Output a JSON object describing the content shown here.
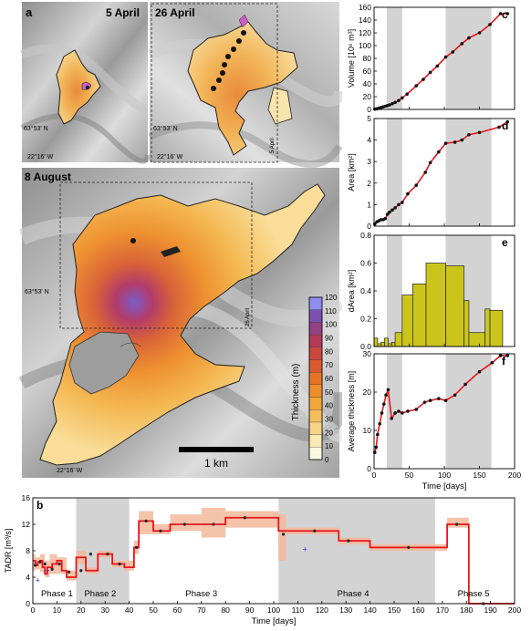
{
  "panel_labels": {
    "a": "a",
    "b": "b",
    "c": "c",
    "d": "d",
    "e": "e",
    "f": "f"
  },
  "maps": {
    "date1": "5 April",
    "date2": "26 April",
    "date3": "8 August",
    "lat": "63°53' N",
    "lon": "22°16' W",
    "inset_label_1": "5 April",
    "inset_label_2": "26 April",
    "scalebar": "1 km",
    "colorbar_title": "Thickness (m)",
    "colorbar_ticks": [
      "0",
      "10",
      "20",
      "30",
      "40",
      "50",
      "60",
      "70",
      "80",
      "90",
      "100",
      "110",
      "120"
    ],
    "colorbar_colors": [
      "#fdf8e4",
      "#fbe9b3",
      "#f8d486",
      "#f5bd5c",
      "#f2a63c",
      "#ee8e2c",
      "#e57426",
      "#d85a30",
      "#c8483f",
      "#b23c58",
      "#954183",
      "#7a4fb0",
      "#8e8ef0"
    ]
  },
  "chart_data": [
    {
      "id": "c",
      "type": "line",
      "ylabel": "Volume [10⁶ m³]",
      "xlim": [
        0,
        200
      ],
      "ylim": [
        0,
        160
      ],
      "yticks": [
        "0",
        "20",
        "40",
        "60",
        "80",
        "100",
        "120",
        "140",
        "160"
      ],
      "shaded": [
        [
          18,
          40
        ],
        [
          102,
          167
        ]
      ],
      "x": [
        1,
        4,
        7,
        10,
        13,
        16,
        19,
        22,
        26,
        30,
        35,
        40,
        47,
        60,
        70,
        80,
        90,
        102,
        112,
        125,
        135,
        150,
        165,
        180,
        190
      ],
      "values": [
        0.5,
        1,
        2,
        3,
        4,
        5,
        6,
        7,
        9,
        11,
        14,
        18,
        24,
        37,
        47,
        58,
        68,
        82,
        90,
        103,
        112,
        120,
        133,
        150,
        150
      ]
    },
    {
      "id": "d",
      "type": "line",
      "ylabel": "Area [km²]",
      "xlim": [
        0,
        200
      ],
      "ylim": [
        0,
        5
      ],
      "yticks": [
        "0",
        "1",
        "2",
        "3",
        "4",
        "5"
      ],
      "shaded": [
        [
          18,
          40
        ],
        [
          102,
          167
        ]
      ],
      "x": [
        1,
        4,
        7,
        10,
        13,
        16,
        19,
        22,
        26,
        30,
        35,
        40,
        48,
        60,
        73,
        80,
        92,
        102,
        115,
        125,
        135,
        150,
        178,
        190
      ],
      "values": [
        0.1,
        0.2,
        0.25,
        0.3,
        0.3,
        0.35,
        0.55,
        0.65,
        0.75,
        0.85,
        1.0,
        1.1,
        1.5,
        1.9,
        2.5,
        2.95,
        3.45,
        3.85,
        3.9,
        4.0,
        4.25,
        4.35,
        4.6,
        4.85
      ]
    },
    {
      "id": "e",
      "type": "bar",
      "ylabel": "dArea [km²]",
      "xlim": [
        0,
        200
      ],
      "ylim": [
        0,
        0.8
      ],
      "yticks": [
        "0.0",
        "0.2",
        "0.4",
        "0.6",
        "0.8"
      ],
      "shaded": [
        [
          18,
          40
        ],
        [
          102,
          167
        ]
      ],
      "bar_color": "#cbc51b",
      "bins": [
        [
          0,
          5
        ],
        [
          5,
          10
        ],
        [
          10,
          15
        ],
        [
          15,
          20
        ],
        [
          20,
          25
        ],
        [
          25,
          30
        ],
        [
          30,
          40
        ],
        [
          40,
          55
        ],
        [
          55,
          74
        ],
        [
          74,
          102
        ],
        [
          102,
          128
        ],
        [
          128,
          135
        ],
        [
          135,
          158
        ],
        [
          158,
          165
        ],
        [
          165,
          183
        ]
      ],
      "values": [
        0.06,
        0.02,
        0.03,
        0.06,
        0.02,
        0.03,
        0.1,
        0.37,
        0.45,
        0.6,
        0.58,
        0.33,
        0.1,
        0.27,
        0.26
      ]
    },
    {
      "id": "f",
      "type": "line",
      "ylabel": "Average thickness [m]",
      "xlabel": "Time [days]",
      "xlim": [
        0,
        200
      ],
      "ylim": [
        0,
        32
      ],
      "xticks": [
        "0",
        "50",
        "100",
        "150",
        "200"
      ],
      "yticks": [
        "0",
        "10",
        "20",
        "30"
      ],
      "shaded": [
        [
          18,
          40
        ],
        [
          102,
          167
        ]
      ],
      "x": [
        1,
        3,
        5,
        8,
        11,
        14,
        17,
        20,
        25,
        30,
        35,
        40,
        48,
        60,
        72,
        80,
        92,
        102,
        115,
        130,
        150,
        168,
        180,
        190
      ],
      "values": [
        4.5,
        6,
        9.5,
        12.5,
        15.5,
        18,
        20.5,
        22,
        14,
        15.5,
        16,
        15.5,
        16,
        16.5,
        18.5,
        19,
        19.5,
        19,
        20.5,
        23.5,
        27,
        29.5,
        31.5,
        31.5
      ]
    },
    {
      "id": "b",
      "type": "line",
      "ylabel": "TADR [m³/s]",
      "xlabel": "Time [days]",
      "xlim": [
        0,
        200
      ],
      "ylim": [
        0,
        16
      ],
      "xticks": [
        "0",
        "10",
        "20",
        "30",
        "40",
        "50",
        "60",
        "70",
        "80",
        "90",
        "100",
        "110",
        "120",
        "130",
        "140",
        "150",
        "160",
        "170",
        "180",
        "190",
        "200"
      ],
      "yticks": [
        "0",
        "4",
        "8",
        "12",
        "16"
      ],
      "shaded": [
        [
          18,
          40
        ],
        [
          102,
          167
        ]
      ],
      "phases": [
        "Phase 1",
        "Phase 2",
        "Phase 3",
        "Phase 4",
        "Phase 5"
      ],
      "steps": [
        [
          0,
          1,
          6.5
        ],
        [
          1,
          2,
          5.8
        ],
        [
          2,
          3,
          6.3
        ],
        [
          3,
          4,
          6.5
        ],
        [
          4,
          5,
          5.5
        ],
        [
          5,
          6,
          4.5
        ],
        [
          6,
          8,
          5.5
        ],
        [
          8,
          10,
          6.0
        ],
        [
          10,
          12,
          6.5
        ],
        [
          12,
          14,
          5.0
        ],
        [
          14,
          16,
          4.0
        ],
        [
          16,
          18,
          4.0
        ],
        [
          18,
          22,
          7.0
        ],
        [
          22,
          27,
          5.0
        ],
        [
          27,
          33,
          7.5
        ],
        [
          33,
          38,
          6.0
        ],
        [
          38,
          42,
          5.5
        ],
        [
          42,
          44,
          8.5
        ],
        [
          44,
          50,
          12.5
        ],
        [
          50,
          57,
          11.0
        ],
        [
          57,
          70,
          12.0
        ],
        [
          70,
          80,
          12.0
        ],
        [
          80,
          102,
          13.0
        ],
        [
          102,
          127,
          11.0
        ],
        [
          127,
          140,
          9.5
        ],
        [
          140,
          172,
          8.5
        ],
        [
          172,
          181,
          12.0
        ],
        [
          181,
          200,
          0
        ]
      ],
      "uncertainty": [
        [
          0,
          1,
          5.0,
          7.5
        ],
        [
          1,
          3,
          5.2,
          7.0
        ],
        [
          3,
          5,
          4.8,
          7.5
        ],
        [
          5,
          7,
          4.0,
          6.5
        ],
        [
          7,
          10,
          4.5,
          7.5
        ],
        [
          10,
          14,
          4.5,
          7.0
        ],
        [
          14,
          18,
          3.5,
          5.0
        ],
        [
          18,
          22,
          6.0,
          8.0
        ],
        [
          22,
          27,
          4.5,
          5.5
        ],
        [
          27,
          33,
          7.0,
          8.0
        ],
        [
          33,
          38,
          5.5,
          6.5
        ],
        [
          38,
          42,
          5.0,
          6.5
        ],
        [
          42,
          44,
          7.5,
          9.5
        ],
        [
          44,
          50,
          10.5,
          14.0
        ],
        [
          50,
          57,
          10.5,
          12.0
        ],
        [
          57,
          70,
          11.0,
          13.5
        ],
        [
          70,
          80,
          10.0,
          14.5
        ],
        [
          80,
          102,
          11.5,
          14.0
        ],
        [
          102,
          105,
          6.5,
          13.5
        ],
        [
          105,
          127,
          10.5,
          11.5
        ],
        [
          127,
          140,
          9.0,
          10.0
        ],
        [
          140,
          172,
          8.0,
          9.0
        ],
        [
          172,
          181,
          11.5,
          13.0
        ]
      ],
      "points": [
        [
          1,
          5.8
        ],
        [
          3,
          6.3
        ],
        [
          5,
          6.0
        ],
        [
          8,
          5.2
        ],
        [
          11,
          6.0
        ],
        [
          15,
          4.8
        ],
        [
          20,
          5.0
        ],
        [
          24,
          7.5
        ],
        [
          31,
          7.5
        ],
        [
          36,
          6.0
        ],
        [
          43,
          8.5
        ],
        [
          47,
          12.5
        ],
        [
          53,
          11.0
        ],
        [
          63,
          12.0
        ],
        [
          75,
          12.0
        ],
        [
          88,
          13.0
        ],
        [
          104,
          10.5
        ],
        [
          117,
          11.0
        ],
        [
          131,
          9.5
        ],
        [
          156,
          8.5
        ],
        [
          176,
          12.0
        ],
        [
          187,
          0
        ]
      ],
      "blue_points": [
        [
          2,
          3.5
        ],
        [
          6,
          5.0
        ],
        [
          113,
          8.2
        ]
      ]
    }
  ]
}
